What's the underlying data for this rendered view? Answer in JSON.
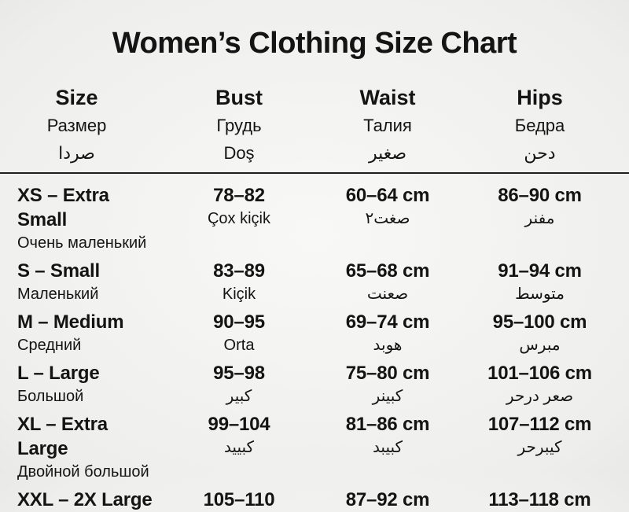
{
  "title": "Women’s Clothing Size Chart",
  "colors": {
    "background": "#f2f2f0",
    "text": "#141414",
    "rule": "#1f1f1f"
  },
  "chart_data": {
    "type": "table",
    "title": "Women’s Clothing Size Chart",
    "columns": [
      {
        "en": "Size",
        "ru": "Размер",
        "ar": "صردا"
      },
      {
        "en": "Bust",
        "ru": "Грудь",
        "ar": "Doş"
      },
      {
        "en": "Waist",
        "ru": "Талия",
        "ar": "صغير"
      },
      {
        "en": "Hips",
        "ru": "Бедра",
        "ar": "دحن"
      }
    ],
    "rows": [
      {
        "size": "XS – Extra Small",
        "size_sub": "Очень маленький",
        "bust": "78–82",
        "bust_sub": "Çox kiçik",
        "waist": "60–64 cm",
        "waist_sub": "صغت٢",
        "hips": "86–90 cm",
        "hips_sub": "مفنر"
      },
      {
        "size": "S – Small",
        "size_sub": "Маленький",
        "bust": "83–89",
        "bust_sub": "Kiçik",
        "waist": "65–68 cm",
        "waist_sub": "صعنت",
        "hips": "91–94 cm",
        "hips_sub": "متوسط"
      },
      {
        "size": "M – Medium",
        "size_sub": "Средний",
        "bust": "90–95",
        "bust_sub": "Orta",
        "waist": "69–74 cm",
        "waist_sub": "هوبد",
        "hips": "95–100 cm",
        "hips_sub": "مبرس"
      },
      {
        "size": "L – Large",
        "size_sub": "Большой",
        "bust": "95–98",
        "bust_sub": "كبير",
        "waist": "75–80 cm",
        "waist_sub": "كبينر",
        "hips": "101–106 cm",
        "hips_sub": "صعر درحر"
      },
      {
        "size": "XL – Extra Large",
        "size_sub": "Двойной большой",
        "bust": "99–104",
        "bust_sub": "كبييد",
        "waist": "81–86 cm",
        "waist_sub": "كبيبد",
        "hips": "107–112 cm",
        "hips_sub": "كيبرحر"
      },
      {
        "size": "XXL – 2X Large",
        "size_sub": "",
        "bust": "105–110",
        "bust_sub": "",
        "waist": "87–92 cm",
        "waist_sub": "",
        "hips": "113–118 cm",
        "hips_sub": ""
      }
    ]
  }
}
